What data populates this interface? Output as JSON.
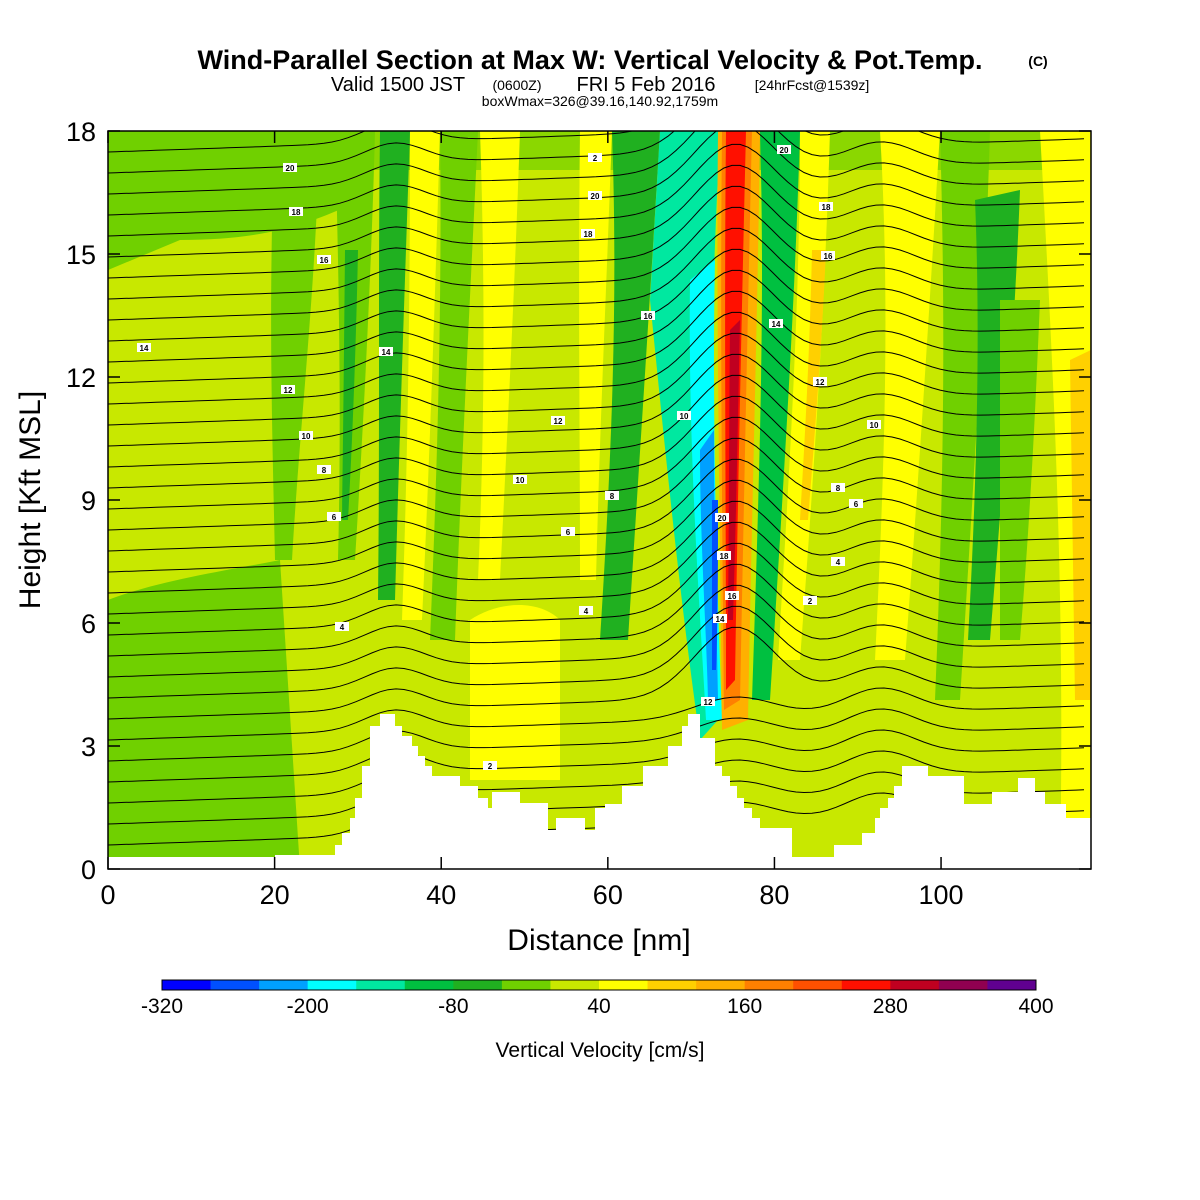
{
  "chart_data": {
    "type": "heatmap",
    "title": "Wind-Parallel Section at Max W: Vertical Velocity & Pot.Temp.",
    "title_mark": "(C)",
    "subtitle_main": "Valid 1500 JST",
    "subtitle_utc": "(0600Z)",
    "subtitle_date": "FRI 5 Feb 2016",
    "subtitle_fcst": "[24hrFcst@1539z]",
    "subtitle2": "boxWmax=326@39.16,140.92,1759m",
    "xlabel": "Distance [nm]",
    "ylabel": "Height [Kft MSL]",
    "xlim": [
      0,
      118
    ],
    "ylim": [
      0,
      18
    ],
    "x_ticks": [
      "0",
      "20",
      "40",
      "60",
      "80",
      "100"
    ],
    "y_ticks": [
      "0",
      "3",
      "6",
      "9",
      "12",
      "15",
      "18"
    ],
    "colorbar_label": "Vertical Velocity [cm/s]",
    "colorbar_tick_labels": [
      "-320",
      "-200",
      "-80",
      "40",
      "160",
      "280",
      "400"
    ],
    "colorbar_colors": [
      "#0000ff",
      "#0050ff",
      "#00a0ff",
      "#00ffff",
      "#00e8a0",
      "#00c040",
      "#20b020",
      "#70d000",
      "#c8e800",
      "#ffff00",
      "#ffd000",
      "#ffb000",
      "#ff8000",
      "#ff5000",
      "#ff1000",
      "#c00020",
      "#900050",
      "#600090"
    ],
    "contour_labels": [
      "20",
      "18",
      "16",
      "14",
      "12",
      "10",
      "8",
      "6",
      "4",
      "2"
    ],
    "max_updraft_cm_s": 326,
    "max_updraft_location": "39.16,140.92",
    "max_updraft_height_m": 1759
  }
}
